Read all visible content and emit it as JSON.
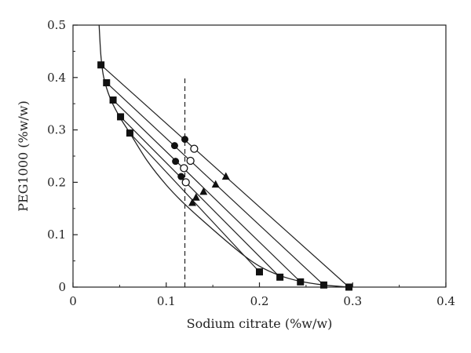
{
  "chart_data": {
    "type": "scatter",
    "title": "",
    "xlabel": "Sodium citrate (%w/w)",
    "ylabel": "PEG1000 (%w/w)",
    "xlim": [
      0,
      0.4
    ],
    "ylim": [
      0,
      0.5
    ],
    "xticks": [
      "0",
      "0.1",
      "0.2",
      "0.3",
      "0.4"
    ],
    "yticks": [
      "0",
      "0.1",
      "0.2",
      "0.3",
      "0.4",
      "0.5"
    ],
    "grid": false,
    "legend": "none",
    "colors": {
      "axis": "#222222",
      "marker": "#111111",
      "line": "#222222"
    },
    "binodal_points": [
      {
        "x": 0.03,
        "y": 0.424
      },
      {
        "x": 0.036,
        "y": 0.39
      },
      {
        "x": 0.043,
        "y": 0.357
      },
      {
        "x": 0.051,
        "y": 0.325
      },
      {
        "x": 0.061,
        "y": 0.294
      },
      {
        "x": 0.2,
        "y": 0.029
      },
      {
        "x": 0.222,
        "y": 0.019
      },
      {
        "x": 0.244,
        "y": 0.01
      },
      {
        "x": 0.269,
        "y": 0.004
      },
      {
        "x": 0.296,
        "y": 0.0
      }
    ],
    "binodal_curve": [
      [
        0.028,
        0.5
      ],
      [
        0.03,
        0.44
      ],
      [
        0.033,
        0.4
      ],
      [
        0.04,
        0.36
      ],
      [
        0.05,
        0.325
      ],
      [
        0.061,
        0.294
      ],
      [
        0.08,
        0.24
      ],
      [
        0.1,
        0.195
      ],
      [
        0.12,
        0.158
      ],
      [
        0.15,
        0.11
      ],
      [
        0.18,
        0.065
      ],
      [
        0.2,
        0.04
      ],
      [
        0.222,
        0.022
      ],
      [
        0.244,
        0.011
      ],
      [
        0.269,
        0.004
      ],
      [
        0.296,
        0.0
      ]
    ],
    "tie_lines": [
      {
        "top": [
          0.03,
          0.424
        ],
        "bottom": [
          0.296,
          0.0
        ]
      },
      {
        "top": [
          0.036,
          0.39
        ],
        "bottom": [
          0.269,
          0.004
        ]
      },
      {
        "top": [
          0.043,
          0.357
        ],
        "bottom": [
          0.244,
          0.01
        ]
      },
      {
        "top": [
          0.051,
          0.325
        ],
        "bottom": [
          0.222,
          0.019
        ]
      },
      {
        "top": [
          0.061,
          0.294
        ],
        "bottom": [
          0.2,
          0.029
        ]
      }
    ],
    "feed_points_filled_circle": [
      {
        "x": 0.12,
        "y": 0.282
      },
      {
        "x": 0.109,
        "y": 0.27
      },
      {
        "x": 0.11,
        "y": 0.24
      },
      {
        "x": 0.116,
        "y": 0.211
      }
    ],
    "feed_points_open_circle": [
      {
        "x": 0.13,
        "y": 0.264
      },
      {
        "x": 0.126,
        "y": 0.241
      },
      {
        "x": 0.119,
        "y": 0.227
      },
      {
        "x": 0.121,
        "y": 0.2
      }
    ],
    "feed_points_triangle": [
      {
        "x": 0.164,
        "y": 0.211
      },
      {
        "x": 0.153,
        "y": 0.196
      },
      {
        "x": 0.14,
        "y": 0.182
      },
      {
        "x": 0.132,
        "y": 0.171
      },
      {
        "x": 0.128,
        "y": 0.161
      }
    ],
    "reference_line": {
      "x": 0.12,
      "y_from": 0.0,
      "y_to": 0.4,
      "style": "dashed"
    }
  }
}
